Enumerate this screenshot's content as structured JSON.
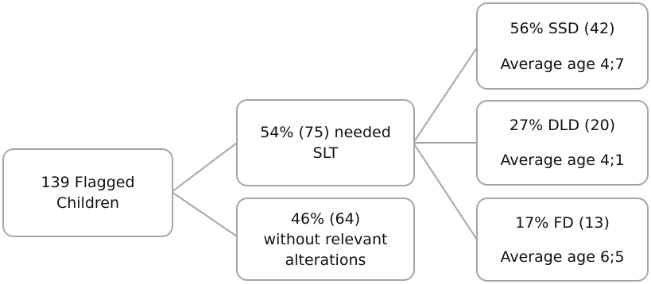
{
  "root": {
    "line1": "139 Flagged",
    "line2": "Children"
  },
  "needed": {
    "line1": "54% (75) needed",
    "line2": "SLT"
  },
  "without": {
    "line1": "46% (64)",
    "line2": "without relevant",
    "line3": "alterations"
  },
  "ssd": {
    "line1": "56% SSD (42)",
    "line2": "Average age 4;7"
  },
  "dld": {
    "line1": "27% DLD (20)",
    "line2": "Average age 4;1"
  },
  "fd": {
    "line1": "17% FD (13)",
    "line2": "Average age 6;5"
  }
}
